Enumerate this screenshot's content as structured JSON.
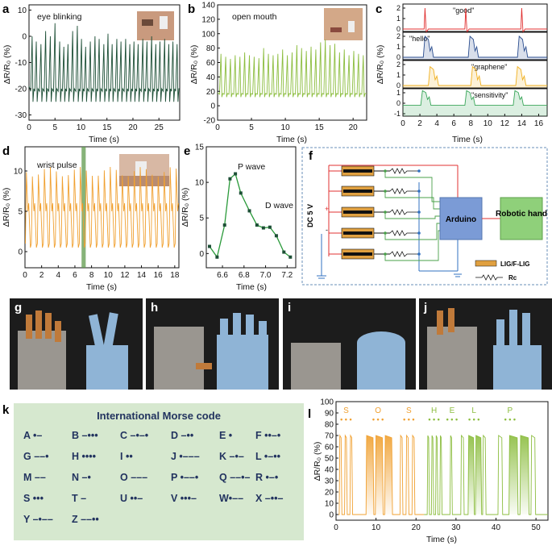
{
  "panels": {
    "a": {
      "label": "a",
      "annotation": "eye blinking",
      "xlabel": "Time (s)",
      "ylabel": "ΔR/R₀ (%)",
      "color": "#1d4f36",
      "xticks": [
        "0",
        "5",
        "10",
        "15",
        "20",
        "25"
      ],
      "yticks": [
        "10",
        "0",
        "-10",
        "-20",
        "-30"
      ],
      "xlim": [
        0,
        29
      ],
      "ylim": [
        -32,
        12
      ]
    },
    "b": {
      "label": "b",
      "annotation": "open mouth",
      "xlabel": "Time (s)",
      "ylabel": "ΔR/R₀ (%)",
      "color": "#8cbd3f",
      "xticks": [
        "0",
        "5",
        "10",
        "15",
        "20"
      ],
      "yticks": [
        "140",
        "120",
        "100",
        "80",
        "60",
        "40",
        "20",
        "0",
        "-20"
      ],
      "xlim": [
        0,
        22
      ],
      "ylim": [
        -20,
        140
      ]
    },
    "c": {
      "label": "c",
      "xlabel": "Time (s)",
      "ylabel": "ΔR/R₀ (%)",
      "xticks": [
        "0",
        "2",
        "4",
        "6",
        "8",
        "10",
        "12",
        "14",
        "16"
      ],
      "subplots": [
        {
          "word": "\"good\"",
          "color": "#e03030",
          "yticks": [
            "2",
            "1",
            "0"
          ]
        },
        {
          "word": "\"hello\"",
          "color": "#2a4d8f",
          "yticks": [
            "2",
            "1",
            "0"
          ]
        },
        {
          "word": "\"graphene\"",
          "color": "#f0b020",
          "yticks": [
            "2",
            "1",
            "0"
          ]
        },
        {
          "word": "\"sensitivity\"",
          "color": "#3aa65a",
          "yticks": [
            "1",
            "0",
            "-1"
          ]
        }
      ]
    },
    "d": {
      "label": "d",
      "annotation": "wrist pulse",
      "xlabel": "Time (s)",
      "ylabel": "ΔR/R₀ (%)",
      "color": "#f0a030",
      "xticks": [
        "0",
        "2",
        "4",
        "6",
        "8",
        "10",
        "12",
        "14",
        "16",
        "18"
      ],
      "yticks": [
        "10",
        "5",
        "0"
      ],
      "xlim": [
        0,
        18.5
      ],
      "ylim": [
        -2,
        13
      ]
    },
    "e": {
      "label": "e",
      "xlabel": "Time (s)",
      "ylabel": "ΔR/R₀ (%)",
      "color": "#2a9a3a",
      "xticks": [
        "6.6",
        "6.8",
        "7.0",
        "7.2"
      ],
      "yticks": [
        "15",
        "10",
        "5",
        "0"
      ],
      "xlim": [
        6.45,
        7.28
      ],
      "ylim": [
        -2,
        15
      ],
      "p_wave": "P wave",
      "d_wave": "D wave"
    },
    "f": {
      "label": "f",
      "power": "DC 5 V",
      "plus": "+",
      "minus": "-",
      "arduino": "Arduino",
      "robot": "Robotic hand",
      "legend_lig": "LIG/F-LIG",
      "legend_rc": "Rc",
      "colors": {
        "arduino": "#7b9bd6",
        "robot": "#8fd07a",
        "sensor": "#e0a040",
        "wire_red": "#e03030",
        "wire_blue": "#3070c0",
        "wire_green": "#4aa04a"
      }
    }
  },
  "photos": [
    {
      "label": "g"
    },
    {
      "label": "h"
    },
    {
      "label": "i"
    },
    {
      "label": "j"
    }
  ],
  "morse": {
    "label": "k",
    "title": "International Morse code",
    "rows": [
      [
        "A •–",
        "B –•••",
        "C –•–•",
        "D –••",
        "E •",
        "F ••–•"
      ],
      [
        "G ––•",
        "H ••••",
        "I ••",
        "J •–––",
        "K –•–",
        "L •–••"
      ],
      [
        "M ––",
        "N –•",
        "O –––",
        "P •––•",
        "Q ––•–",
        "R •–•"
      ],
      [
        "S •••",
        "T –",
        "U ••–",
        "V •••–",
        "W•––",
        "X –••–"
      ],
      [
        "Y –•––",
        "Z ––••"
      ]
    ]
  },
  "chart_data": [
    {
      "type": "line",
      "id": "a",
      "title": "eye blinking",
      "xlabel": "Time (s)",
      "ylabel": "ΔR/R0 (%)",
      "xlim": [
        0,
        29
      ],
      "ylim": [
        -32,
        12
      ],
      "series": [
        {
          "name": "eye blinking",
          "peaks": [
            0.6,
            1.4,
            2.3,
            3.2,
            4.1,
            5.0,
            5.9,
            6.7,
            7.5,
            8.4,
            9.3,
            10.1,
            10.9,
            11.8,
            12.7,
            13.5,
            14.4,
            15.2,
            16.0,
            16.9,
            17.7,
            18.6,
            19.4,
            20.2,
            21.0,
            21.9,
            22.7,
            23.6,
            24.4,
            25.2,
            26.1,
            26.9,
            27.7,
            28.5
          ],
          "max_values": [
            0,
            -2,
            -3,
            2,
            0,
            5,
            -2,
            -4,
            -3,
            2,
            4,
            -1,
            -4,
            -2,
            0,
            -1,
            -3,
            1,
            -3,
            -1,
            -2,
            -1,
            -3,
            -2,
            -3,
            -1,
            -2,
            0,
            -3,
            -2,
            -1,
            -3,
            -2,
            -3
          ],
          "baseline_min": -25
        }
      ]
    },
    {
      "type": "line",
      "id": "b",
      "title": "open mouth",
      "xlabel": "Time (s)",
      "ylabel": "ΔR/R0 (%)",
      "xlim": [
        0,
        22
      ],
      "ylim": [
        -20,
        140
      ],
      "series": [
        {
          "name": "open mouth",
          "peaks": [
            0.5,
            1.2,
            1.9,
            2.6,
            3.3,
            4.0,
            4.7,
            5.4,
            6.1,
            6.8,
            7.5,
            8.2,
            8.9,
            9.6,
            10.3,
            11.0,
            11.7,
            12.4,
            13.1,
            13.8,
            14.5,
            15.2,
            15.9,
            16.6,
            17.3,
            18.0,
            18.7,
            19.4,
            20.1,
            20.8,
            21.5
          ],
          "max_values": [
            72,
            68,
            65,
            70,
            68,
            74,
            70,
            68,
            66,
            80,
            72,
            70,
            72,
            78,
            70,
            74,
            84,
            80,
            76,
            82,
            78,
            88,
            92,
            84,
            86,
            74,
            78,
            70,
            76,
            72,
            70
          ],
          "baseline_min": 12
        }
      ]
    },
    {
      "type": "line",
      "id": "c",
      "xlabel": "Time (s)",
      "xlim": [
        0,
        17
      ],
      "series": [
        {
          "name": "good",
          "events": [
            2.6,
            7.4,
            14.0
          ],
          "amplitude": 2.0
        },
        {
          "name": "hello",
          "events": [
            2.7,
            8.0,
            13.8
          ],
          "amplitude": 2.0
        },
        {
          "name": "graphene",
          "events": [
            3.3,
            8.3,
            13.6
          ],
          "amplitude": 1.8
        },
        {
          "name": "sensitivity",
          "events": [
            2.4,
            7.6,
            13.3
          ],
          "amplitude": 1.2
        }
      ]
    },
    {
      "type": "line",
      "id": "d",
      "title": "wrist pulse",
      "xlabel": "Time (s)",
      "ylabel": "ΔR/R0 (%)",
      "xlim": [
        0,
        18.5
      ],
      "ylim": [
        -2,
        13
      ],
      "series": [
        {
          "name": "wrist pulse",
          "period": 0.72,
          "max": 10.5,
          "min": 0.5
        }
      ],
      "highlight_range": [
        6.8,
        7.3
      ]
    },
    {
      "type": "line",
      "id": "e",
      "xlabel": "Time (s)",
      "ylabel": "ΔR/R0 (%)",
      "xlim": [
        6.45,
        7.28
      ],
      "ylim": [
        -2,
        15
      ],
      "x": [
        6.48,
        6.55,
        6.62,
        6.67,
        6.72,
        6.77,
        6.85,
        6.92,
        6.98,
        7.04,
        7.1,
        7.17,
        7.23
      ],
      "y": [
        1,
        -0.5,
        4,
        10.5,
        11.2,
        8.5,
        6,
        4,
        3.6,
        3.7,
        2.5,
        0.2,
        -0.5
      ],
      "annotations": [
        "P wave",
        "D wave"
      ]
    },
    {
      "type": "line",
      "id": "l",
      "xlabel": "Time (s)",
      "ylabel": "ΔR/R0 (%)",
      "xlim": [
        0,
        53
      ],
      "ylim": [
        -5,
        100
      ],
      "yticks": [
        0,
        10,
        20,
        30,
        40,
        50,
        60,
        70,
        80,
        90,
        100
      ],
      "xticks": [
        0,
        10,
        20,
        30,
        40,
        50
      ],
      "letters": [
        {
          "letter": "S",
          "x": 2.5
        },
        {
          "letter": "O",
          "x": 10.5
        },
        {
          "letter": "S",
          "x": 18.2
        },
        {
          "letter": "H",
          "x": 24.5
        },
        {
          "letter": "E",
          "x": 29.0
        },
        {
          "letter": "L",
          "x": 34.5
        },
        {
          "letter": "P",
          "x": 43.5
        }
      ],
      "series": [
        {
          "name": "signal",
          "peak_value": 70
        }
      ]
    }
  ]
}
